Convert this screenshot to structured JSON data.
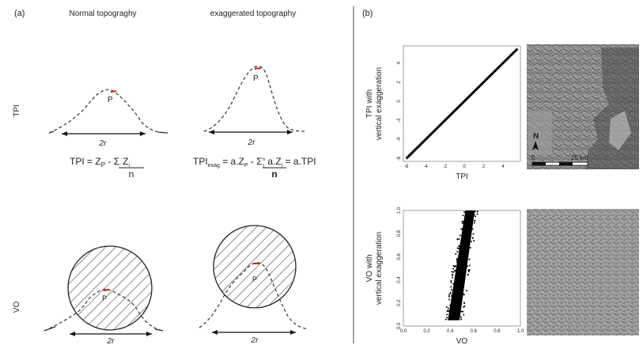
{
  "panel_a": {
    "label": "(a)",
    "col_normal": "Normal topograghy",
    "col_exag": "exaggerated topography",
    "row_tpi": "TPI",
    "row_vo": "VO",
    "point": "P",
    "radius": "2r",
    "formula_tpi": {
      "lhs": "TPI = Z",
      "sub_p": "P",
      "minus": " - ",
      "sigma": "Σ",
      "z": "Z",
      "sub_i": "i",
      "denom": "n"
    },
    "formula_exag": {
      "lhs": "TPI",
      "sub_exag": "exag",
      "mid": " = a.Z",
      "sub_p": "P",
      "minus": " - ",
      "sigma": "Σ",
      "sup_n": "n",
      "sub_1": "1",
      "az": "a.Z",
      "sub_i": "i",
      "rhs": " = a.TPI",
      "denom": "n"
    }
  },
  "panel_b": {
    "label": "(b)",
    "map_north": "N",
    "scale_zero": "0",
    "scale_label": "25 km"
  },
  "chart_data": [
    {
      "type": "scatter",
      "xlabel": "TPI",
      "ylabel": [
        "TPI with",
        "vertical exaggeration"
      ],
      "xticks": [
        -6,
        -4,
        -2,
        0,
        2,
        4
      ],
      "yticks": [
        -6,
        -4,
        -2,
        0,
        2,
        4
      ],
      "xlim": [
        -6.3,
        5.8
      ],
      "ylim": [
        -6.3,
        5.8
      ],
      "line": {
        "x": [
          -6,
          5.5
        ],
        "y": [
          -6,
          5.5
        ]
      },
      "color": "#000000"
    },
    {
      "type": "scatter",
      "xlabel": "VO",
      "ylabel": [
        "VO with",
        "vertical exaggeration"
      ],
      "xticks": [
        0.0,
        0.2,
        0.4,
        0.6,
        0.8,
        1.0
      ],
      "yticks": [
        0.0,
        0.2,
        0.4,
        0.6,
        0.8,
        1.0
      ],
      "xlim": [
        0,
        1
      ],
      "ylim": [
        0,
        1
      ],
      "band": {
        "x_bottom": [
          0.38,
          0.48
        ],
        "x_top": [
          0.53,
          0.61
        ],
        "y_range": [
          0.05,
          1.0
        ]
      },
      "color": "#000000"
    }
  ]
}
